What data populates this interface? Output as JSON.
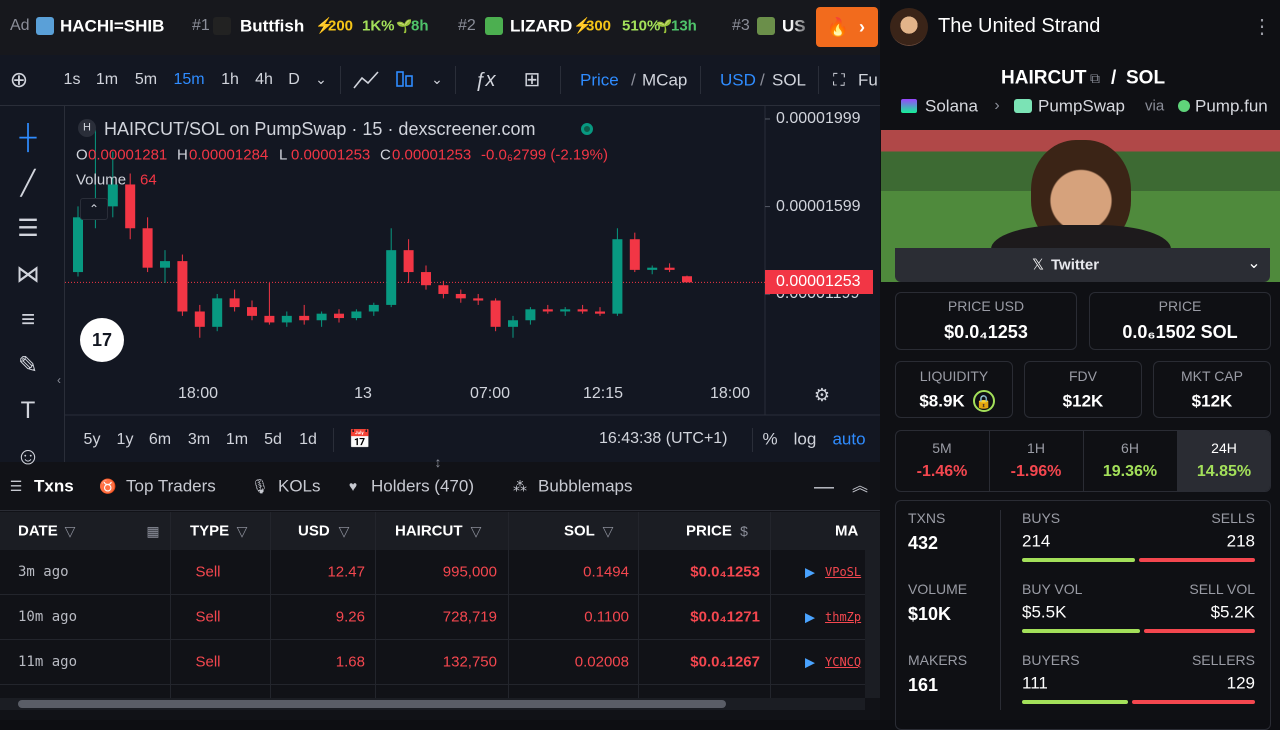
{
  "ticker": {
    "ad": "Ad",
    "items": [
      {
        "name": "HACHI=SHIB"
      },
      {
        "rank": "#1",
        "name": "Buttfish",
        "boost": "200",
        "change": "1K%",
        "age": "8h"
      },
      {
        "rank": "#2",
        "name": "LIZARD",
        "boost": "300",
        "change": "510%",
        "age": "13h"
      },
      {
        "rank": "#3",
        "name": "US"
      }
    ]
  },
  "profile": {
    "name": "The United Strand"
  },
  "toolbar": {
    "intervals": [
      "1s",
      "1m",
      "5m",
      "15m",
      "1h",
      "4h",
      "D"
    ],
    "active_interval": 3,
    "price": "Price",
    "mcap": "MCap",
    "usd": "USD",
    "sol": "SOL",
    "more": "Fu"
  },
  "chart_data": {
    "type": "candlestick",
    "title": "HAIRCUT/SOL on PumpSwap · 15 · dexscreener.com",
    "ohlc": {
      "o_label": "O",
      "o": "0.00001281",
      "h_label": "H",
      "h": "0.00001284",
      "l_label": "L",
      "l": "0.00001253",
      "c_label": "C",
      "c": "0.00001253",
      "change": "-0.0₆2799 (-2.19%)"
    },
    "volume_label": "Volume",
    "volume": "64",
    "ylim": [
      8.3e-06,
      2.04e-05
    ],
    "yticks": [
      1.999e-05,
      1.599e-05,
      1.199e-05
    ],
    "last_price": 1.253e-05,
    "x_labels": [
      "18:00",
      "13",
      "07:00",
      "12:15",
      "18:00"
    ],
    "up_color": "#089981",
    "down_color": "#f23645",
    "candles": [
      [
        1.3e-05,
        1.6e-05,
        1.28e-05,
        1.55e-05
      ],
      [
        1.55e-05,
        1.95e-05,
        1.5e-05,
        1.6e-05
      ],
      [
        1.6e-05,
        1.85e-05,
        1.55e-05,
        1.7e-05
      ],
      [
        1.7e-05,
        1.75e-05,
        1.45e-05,
        1.5e-05
      ],
      [
        1.5e-05,
        1.55e-05,
        1.3e-05,
        1.32e-05
      ],
      [
        1.32e-05,
        1.4e-05,
        1.25e-05,
        1.35e-05
      ],
      [
        1.35e-05,
        1.38e-05,
        1.1e-05,
        1.12e-05
      ],
      [
        1.12e-05,
        1.15e-05,
        1e-05,
        1.05e-05
      ],
      [
        1.05e-05,
        1.2e-05,
        1.03e-05,
        1.18e-05
      ],
      [
        1.18e-05,
        1.22e-05,
        1.12e-05,
        1.14e-05
      ],
      [
        1.14e-05,
        1.17e-05,
        1.08e-05,
        1.1e-05
      ],
      [
        1.1e-05,
        1.25e-05,
        1.06e-05,
        1.07e-05
      ],
      [
        1.07e-05,
        1.12e-05,
        1.05e-05,
        1.1e-05
      ],
      [
        1.1e-05,
        1.15e-05,
        1.06e-05,
        1.08e-05
      ],
      [
        1.08e-05,
        1.12e-05,
        1.05e-05,
        1.11e-05
      ],
      [
        1.11e-05,
        1.13e-05,
        1.07e-05,
        1.09e-05
      ],
      [
        1.09e-05,
        1.13e-05,
        1.08e-05,
        1.12e-05
      ],
      [
        1.12e-05,
        1.16e-05,
        1.1e-05,
        1.15e-05
      ],
      [
        1.15e-05,
        1.5e-05,
        1.14e-05,
        1.4e-05
      ],
      [
        1.4e-05,
        1.45e-05,
        1.25e-05,
        1.3e-05
      ],
      [
        1.3e-05,
        1.33e-05,
        1.22e-05,
        1.24e-05
      ],
      [
        1.24e-05,
        1.26e-05,
        1.18e-05,
        1.2e-05
      ],
      [
        1.2e-05,
        1.22e-05,
        1.16e-05,
        1.18e-05
      ],
      [
        1.18e-05,
        1.2e-05,
        1.15e-05,
        1.17e-05
      ],
      [
        1.17e-05,
        1.18e-05,
        1.03e-05,
        1.05e-05
      ],
      [
        1.05e-05,
        1.1e-05,
        1e-05,
        1.08e-05
      ],
      [
        1.08e-05,
        1.14e-05,
        1.06e-05,
        1.13e-05
      ],
      [
        1.13e-05,
        1.15e-05,
        1.11e-05,
        1.12e-05
      ],
      [
        1.12e-05,
        1.14e-05,
        1.1e-05,
        1.13e-05
      ],
      [
        1.13e-05,
        1.15e-05,
        1.11e-05,
        1.12e-05
      ],
      [
        1.12e-05,
        1.14e-05,
        1.1e-05,
        1.11e-05
      ],
      [
        1.11e-05,
        1.5e-05,
        1.1e-05,
        1.45e-05
      ],
      [
        1.45e-05,
        1.48e-05,
        1.3e-05,
        1.31e-05
      ],
      [
        1.31e-05,
        1.33e-05,
        1.29e-05,
        1.32e-05
      ],
      [
        1.32e-05,
        1.34e-05,
        1.3e-05,
        1.31e-05
      ],
      [
        1.281e-05,
        1.284e-05,
        1.253e-05,
        1.253e-05
      ]
    ]
  },
  "range_bar": {
    "ranges": [
      "5y",
      "1y",
      "6m",
      "3m",
      "1m",
      "5d",
      "1d"
    ],
    "clock": "16:43:38 (UTC+1)",
    "percent": "%",
    "log": "log",
    "auto": "auto"
  },
  "tabs": [
    "Txns",
    "Top Traders",
    "KOLs",
    "Holders (470)",
    "Bubblemaps"
  ],
  "table": {
    "columns": [
      "DATE",
      "TYPE",
      "USD",
      "HAIRCUT",
      "SOL",
      "PRICE",
      "MA"
    ],
    "rows": [
      [
        "3m ago",
        "Sell",
        "12.47",
        "995,000",
        "0.1494",
        "$0.0₄1253",
        "VPoSL"
      ],
      [
        "10m ago",
        "Sell",
        "9.26",
        "728,719",
        "0.1100",
        "$0.0₄1271",
        "thmZp"
      ],
      [
        "11m ago",
        "Sell",
        "1.68",
        "132,750",
        "0.02008",
        "$0.0₄1267",
        "YCNCQ"
      ]
    ]
  },
  "pair": {
    "base": "HAIRCUT",
    "sep": "/",
    "quote": "SOL",
    "chain": "Solana",
    "dex": "PumpSwap",
    "via": "via",
    "launchpad": "Pump.fun",
    "twitter": "Twitter"
  },
  "prices": [
    {
      "label": "PRICE USD",
      "value": "$0.0₄1253"
    },
    {
      "label": "PRICE",
      "value": "0.0₆1502 SOL"
    }
  ],
  "metrics": [
    {
      "label": "LIQUIDITY",
      "value": "$8.9K"
    },
    {
      "label": "FDV",
      "value": "$12K"
    },
    {
      "label": "MKT CAP",
      "value": "$12K"
    }
  ],
  "timeframes": [
    {
      "label": "5M",
      "change": "-1.46%"
    },
    {
      "label": "1H",
      "change": "-1.96%"
    },
    {
      "label": "6H",
      "change": "19.36%"
    },
    {
      "label": "24H",
      "change": "14.85%"
    }
  ],
  "active_timeframe": 3,
  "stats": [
    {
      "label": "TXNS",
      "value": "432",
      "left_label": "BUYS",
      "left": 214,
      "right_label": "SELLS",
      "right": 218
    },
    {
      "label": "VOLUME",
      "value": "$10K",
      "left_label": "BUY VOL",
      "left": {
        "value": 5500,
        "label": "$5.5K"
      },
      "right_label": "SELL VOL",
      "right": {
        "value": 5200,
        "label": "$5.2K"
      }
    },
    {
      "label": "MAKERS",
      "value": "161",
      "left_label": "BUYERS",
      "left": 111,
      "right_label": "SELLERS",
      "right": 129
    }
  ]
}
